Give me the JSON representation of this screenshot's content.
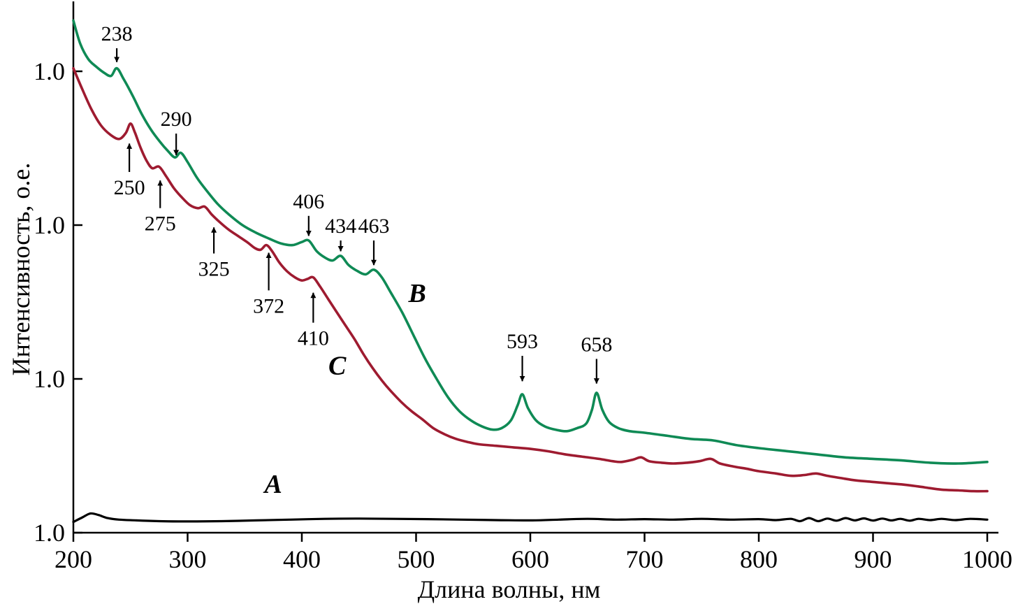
{
  "chart_data": {
    "type": "line",
    "title": "",
    "xlabel": "Длина волны, нм",
    "ylabel": "Интенсивность, о.е.",
    "x_axis": {
      "min": 200,
      "max": 1000,
      "ticks": [
        200,
        300,
        400,
        500,
        600,
        700,
        800,
        900,
        1000
      ],
      "unit": "нм"
    },
    "y_axis": {
      "scale": "log",
      "note": "three decades, each decade gridline labeled 1.0; y values below are in decades above the bottom axis",
      "ticks": [
        {
          "pos": 0,
          "label": "1.0"
        },
        {
          "pos": 1,
          "label": "1.0"
        },
        {
          "pos": 2,
          "label": "1.0"
        },
        {
          "pos": 3,
          "label": "1.0"
        }
      ]
    },
    "series": [
      {
        "name": "A",
        "color": "#000000",
        "width": 3.2,
        "points": [
          [
            200,
            0.07
          ],
          [
            208,
            0.1
          ],
          [
            215,
            0.125
          ],
          [
            222,
            0.115
          ],
          [
            230,
            0.095
          ],
          [
            240,
            0.085
          ],
          [
            255,
            0.08
          ],
          [
            275,
            0.075
          ],
          [
            300,
            0.073
          ],
          [
            330,
            0.075
          ],
          [
            360,
            0.08
          ],
          [
            390,
            0.085
          ],
          [
            420,
            0.09
          ],
          [
            450,
            0.092
          ],
          [
            480,
            0.09
          ],
          [
            510,
            0.088
          ],
          [
            540,
            0.085
          ],
          [
            570,
            0.082
          ],
          [
            600,
            0.08
          ],
          [
            625,
            0.085
          ],
          [
            650,
            0.09
          ],
          [
            675,
            0.085
          ],
          [
            700,
            0.088
          ],
          [
            725,
            0.085
          ],
          [
            750,
            0.09
          ],
          [
            775,
            0.085
          ],
          [
            800,
            0.088
          ],
          [
            815,
            0.082
          ],
          [
            828,
            0.09
          ],
          [
            836,
            0.075
          ],
          [
            844,
            0.095
          ],
          [
            852,
            0.075
          ],
          [
            860,
            0.092
          ],
          [
            868,
            0.078
          ],
          [
            876,
            0.095
          ],
          [
            884,
            0.08
          ],
          [
            892,
            0.093
          ],
          [
            900,
            0.079
          ],
          [
            908,
            0.092
          ],
          [
            916,
            0.08
          ],
          [
            924,
            0.09
          ],
          [
            932,
            0.078
          ],
          [
            940,
            0.09
          ],
          [
            950,
            0.082
          ],
          [
            960,
            0.09
          ],
          [
            972,
            0.082
          ],
          [
            985,
            0.09
          ],
          [
            1000,
            0.085
          ]
        ]
      },
      {
        "name": "B",
        "color": "#0f8a55",
        "width": 3.6,
        "points": [
          [
            200,
            3.33
          ],
          [
            206,
            3.18
          ],
          [
            213,
            3.08
          ],
          [
            220,
            3.03
          ],
          [
            227,
            2.99
          ],
          [
            233,
            2.97
          ],
          [
            238,
            3.02
          ],
          [
            244,
            2.95
          ],
          [
            252,
            2.84
          ],
          [
            260,
            2.72
          ],
          [
            268,
            2.62
          ],
          [
            276,
            2.54
          ],
          [
            283,
            2.48
          ],
          [
            289,
            2.44
          ],
          [
            294,
            2.47
          ],
          [
            300,
            2.41
          ],
          [
            308,
            2.31
          ],
          [
            316,
            2.23
          ],
          [
            326,
            2.14
          ],
          [
            336,
            2.07
          ],
          [
            348,
            2.0
          ],
          [
            360,
            1.95
          ],
          [
            372,
            1.91
          ],
          [
            382,
            1.88
          ],
          [
            392,
            1.87
          ],
          [
            400,
            1.89
          ],
          [
            406,
            1.9
          ],
          [
            413,
            1.83
          ],
          [
            420,
            1.79
          ],
          [
            427,
            1.77
          ],
          [
            434,
            1.8
          ],
          [
            441,
            1.74
          ],
          [
            449,
            1.7
          ],
          [
            456,
            1.68
          ],
          [
            463,
            1.71
          ],
          [
            470,
            1.66
          ],
          [
            478,
            1.56
          ],
          [
            488,
            1.43
          ],
          [
            498,
            1.28
          ],
          [
            508,
            1.13
          ],
          [
            518,
            1.0
          ],
          [
            528,
            0.88
          ],
          [
            538,
            0.79
          ],
          [
            548,
            0.73
          ],
          [
            558,
            0.69
          ],
          [
            567,
            0.67
          ],
          [
            575,
            0.68
          ],
          [
            583,
            0.73
          ],
          [
            589,
            0.83
          ],
          [
            593,
            0.9
          ],
          [
            598,
            0.81
          ],
          [
            605,
            0.73
          ],
          [
            613,
            0.69
          ],
          [
            622,
            0.67
          ],
          [
            632,
            0.66
          ],
          [
            641,
            0.68
          ],
          [
            649,
            0.71
          ],
          [
            654,
            0.8
          ],
          [
            658,
            0.91
          ],
          [
            663,
            0.8
          ],
          [
            669,
            0.72
          ],
          [
            677,
            0.68
          ],
          [
            687,
            0.66
          ],
          [
            700,
            0.65
          ],
          [
            720,
            0.63
          ],
          [
            740,
            0.61
          ],
          [
            760,
            0.6
          ],
          [
            780,
            0.57
          ],
          [
            800,
            0.55
          ],
          [
            825,
            0.53
          ],
          [
            850,
            0.51
          ],
          [
            875,
            0.49
          ],
          [
            900,
            0.48
          ],
          [
            925,
            0.47
          ],
          [
            950,
            0.455
          ],
          [
            975,
            0.45
          ],
          [
            1000,
            0.46
          ]
        ]
      },
      {
        "name": "C",
        "color": "#9e1b30",
        "width": 3.6,
        "points": [
          [
            200,
            3.02
          ],
          [
            208,
            2.88
          ],
          [
            216,
            2.75
          ],
          [
            224,
            2.65
          ],
          [
            232,
            2.59
          ],
          [
            240,
            2.56
          ],
          [
            246,
            2.6
          ],
          [
            250,
            2.66
          ],
          [
            254,
            2.6
          ],
          [
            259,
            2.5
          ],
          [
            264,
            2.42
          ],
          [
            269,
            2.37
          ],
          [
            275,
            2.38
          ],
          [
            281,
            2.32
          ],
          [
            288,
            2.24
          ],
          [
            295,
            2.18
          ],
          [
            302,
            2.13
          ],
          [
            309,
            2.11
          ],
          [
            315,
            2.12
          ],
          [
            321,
            2.07
          ],
          [
            328,
            2.02
          ],
          [
            336,
            1.97
          ],
          [
            344,
            1.93
          ],
          [
            352,
            1.89
          ],
          [
            359,
            1.85
          ],
          [
            364,
            1.84
          ],
          [
            369,
            1.87
          ],
          [
            374,
            1.83
          ],
          [
            380,
            1.76
          ],
          [
            387,
            1.7
          ],
          [
            394,
            1.66
          ],
          [
            400,
            1.64
          ],
          [
            405,
            1.65
          ],
          [
            410,
            1.66
          ],
          [
            416,
            1.6
          ],
          [
            423,
            1.52
          ],
          [
            430,
            1.44
          ],
          [
            438,
            1.35
          ],
          [
            446,
            1.26
          ],
          [
            454,
            1.16
          ],
          [
            462,
            1.07
          ],
          [
            470,
            0.99
          ],
          [
            478,
            0.92
          ],
          [
            487,
            0.85
          ],
          [
            496,
            0.79
          ],
          [
            505,
            0.74
          ],
          [
            515,
            0.68
          ],
          [
            525,
            0.64
          ],
          [
            535,
            0.61
          ],
          [
            545,
            0.59
          ],
          [
            555,
            0.575
          ],
          [
            570,
            0.565
          ],
          [
            585,
            0.555
          ],
          [
            600,
            0.545
          ],
          [
            615,
            0.53
          ],
          [
            630,
            0.51
          ],
          [
            645,
            0.495
          ],
          [
            660,
            0.48
          ],
          [
            672,
            0.465
          ],
          [
            680,
            0.46
          ],
          [
            690,
            0.475
          ],
          [
            697,
            0.49
          ],
          [
            704,
            0.465
          ],
          [
            715,
            0.455
          ],
          [
            725,
            0.45
          ],
          [
            737,
            0.455
          ],
          [
            748,
            0.465
          ],
          [
            758,
            0.48
          ],
          [
            766,
            0.45
          ],
          [
            778,
            0.43
          ],
          [
            790,
            0.415
          ],
          [
            800,
            0.4
          ],
          [
            815,
            0.385
          ],
          [
            828,
            0.37
          ],
          [
            840,
            0.375
          ],
          [
            850,
            0.385
          ],
          [
            860,
            0.37
          ],
          [
            872,
            0.355
          ],
          [
            885,
            0.34
          ],
          [
            900,
            0.33
          ],
          [
            915,
            0.32
          ],
          [
            930,
            0.31
          ],
          [
            945,
            0.295
          ],
          [
            960,
            0.28
          ],
          [
            975,
            0.275
          ],
          [
            988,
            0.27
          ],
          [
            1000,
            0.27
          ]
        ]
      }
    ],
    "annotations": [
      {
        "text": "238",
        "x": 238,
        "dir": "down",
        "label_d": 3.2,
        "tip_d": 3.06
      },
      {
        "text": "290",
        "x": 290,
        "dir": "down",
        "label_d": 2.645,
        "tip_d": 2.455
      },
      {
        "text": "250",
        "x": 249,
        "dir": "up",
        "label_d": 2.2,
        "tip_d": 2.53
      },
      {
        "text": "275",
        "x": 276,
        "dir": "up",
        "label_d": 1.965,
        "tip_d": 2.29
      },
      {
        "text": "325",
        "x": 323,
        "dir": "up",
        "label_d": 1.67,
        "tip_d": 1.985
      },
      {
        "text": "372",
        "x": 371,
        "dir": "up",
        "label_d": 1.43,
        "tip_d": 1.82
      },
      {
        "text": "406",
        "x": 406,
        "dir": "down",
        "label_d": 2.11,
        "tip_d": 1.93
      },
      {
        "text": "434",
        "x": 434,
        "dir": "down",
        "label_d": 1.95,
        "tip_d": 1.83
      },
      {
        "text": "463",
        "x": 463,
        "dir": "down",
        "label_d": 1.95,
        "tip_d": 1.74
      },
      {
        "text": "410",
        "x": 410,
        "dir": "up",
        "label_d": 1.22,
        "tip_d": 1.56
      },
      {
        "text": "593",
        "x": 593,
        "dir": "down",
        "label_d": 1.2,
        "tip_d": 0.985
      },
      {
        "text": "658",
        "x": 658,
        "dir": "down",
        "label_d": 1.18,
        "tip_d": 0.97
      }
    ],
    "series_labels": [
      {
        "text": "B",
        "x": 501,
        "d": 1.5
      },
      {
        "text": "C",
        "x": 431,
        "d": 1.03
      },
      {
        "text": "A",
        "x": 375,
        "d": 0.26
      }
    ]
  }
}
